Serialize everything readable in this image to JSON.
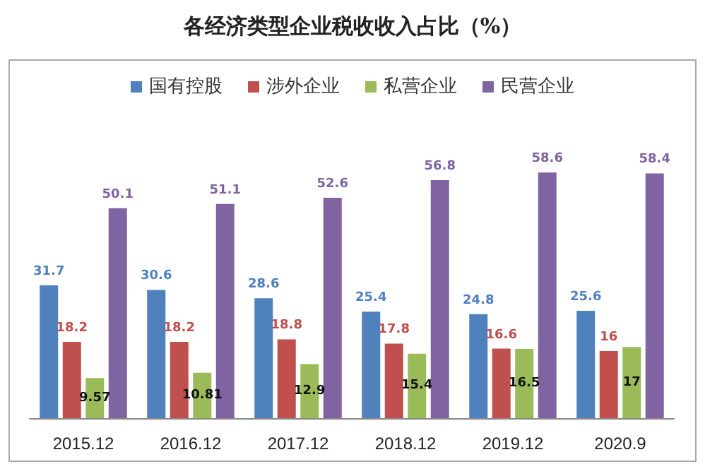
{
  "chart_data": {
    "type": "bar",
    "title": "各经济类型企业税收收入占比（%）",
    "categories": [
      "2015.12",
      "2016.12",
      "2017.12",
      "2018.12",
      "2019.12",
      "2020.9"
    ],
    "series": [
      {
        "name": "国有控股",
        "color": "#4f81bd",
        "values": [
          31.7,
          30.6,
          28.6,
          25.4,
          24.8,
          25.6
        ]
      },
      {
        "name": "涉外企业",
        "color": "#c0504d",
        "values": [
          18.2,
          18.2,
          18.8,
          17.8,
          16.6,
          16
        ]
      },
      {
        "name": "私营企业",
        "color": "#9bbb59",
        "values": [
          9.57,
          10.81,
          12.9,
          15.4,
          16.5,
          17
        ]
      },
      {
        "name": "民营企业",
        "color": "#8064a2",
        "values": [
          50.1,
          51.1,
          52.6,
          56.8,
          58.6,
          58.4
        ]
      }
    ],
    "data_labels": true,
    "legend": "top",
    "grid": false
  }
}
